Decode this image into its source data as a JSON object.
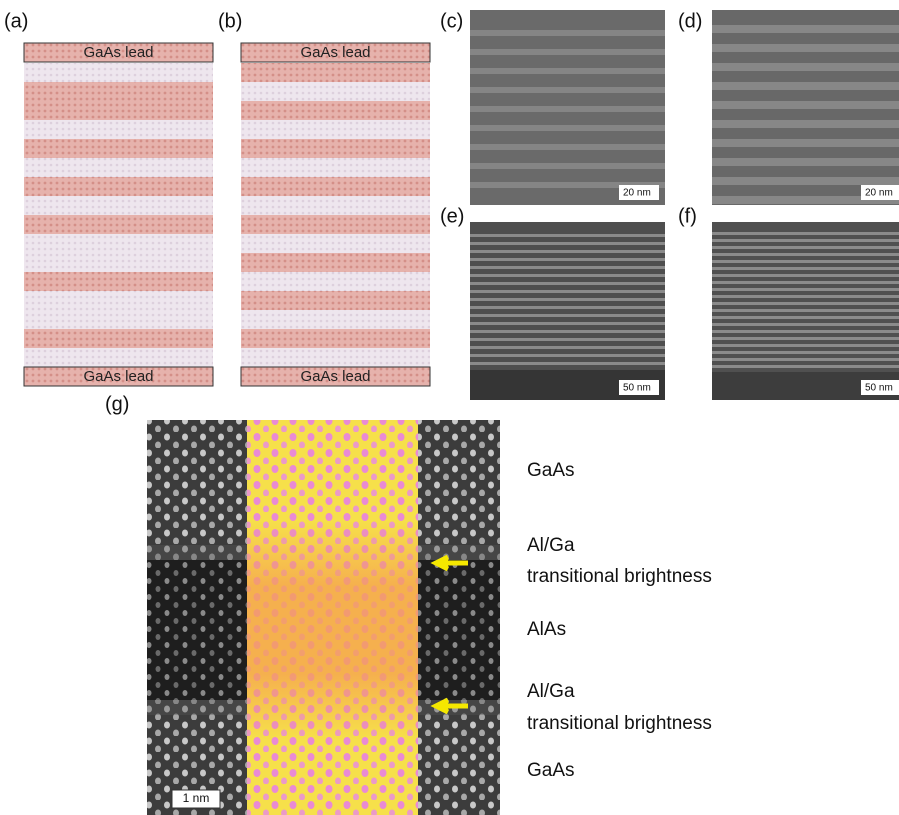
{
  "panels": {
    "a": {
      "label": "(a)",
      "top_lead": "GaAs lead",
      "bottom_lead": "GaAs lead"
    },
    "b": {
      "label": "(b)",
      "top_lead": "GaAs lead",
      "bottom_lead": "GaAs lead"
    },
    "c": {
      "label": "(c)",
      "scale_bar": "20 nm"
    },
    "d": {
      "label": "(d)",
      "scale_bar": "20 nm"
    },
    "e": {
      "label": "(e)",
      "scale_bar": "50 nm"
    },
    "f": {
      "label": "(f)",
      "scale_bar": "50 nm"
    },
    "g": {
      "label": "(g)",
      "scale_bar": "1 nm",
      "layer_labels": [
        "GaAs",
        "Al/Ga",
        "transitional brightness",
        "AlAs",
        "Al/Ga",
        "transitional brightness",
        "GaAs"
      ]
    }
  }
}
